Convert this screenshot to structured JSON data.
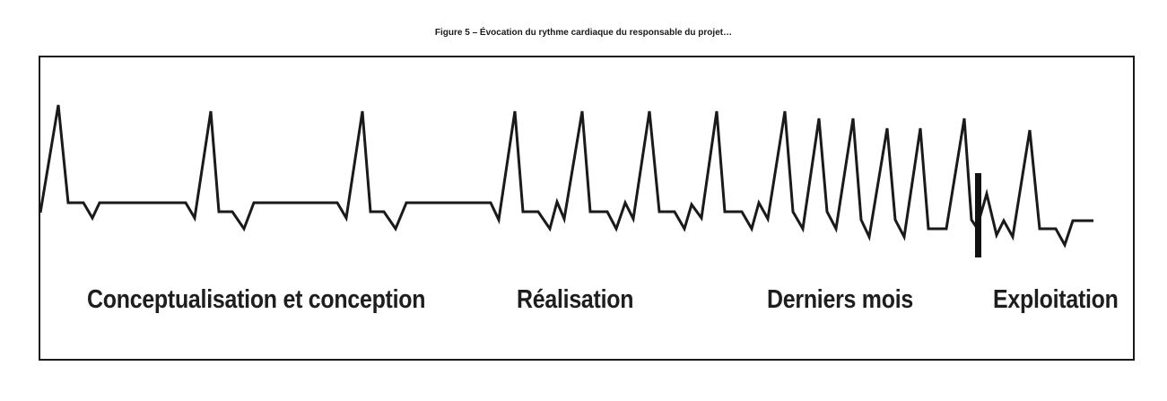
{
  "figure": {
    "caption": "Figure 5 – Évocation du rythme cardiaque du responsable du projet…"
  },
  "phases": [
    {
      "label": "Conceptualisation et conception"
    },
    {
      "label": "Réalisation"
    },
    {
      "label": "Derniers mois"
    },
    {
      "label": "Exploitation"
    }
  ],
  "colors": {
    "trace": "#1a1a1a",
    "marker": "#111111",
    "frame": "#1a1a1a",
    "background": "#ffffff"
  }
}
